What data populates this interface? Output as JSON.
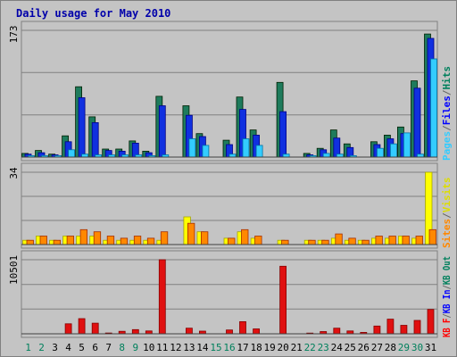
{
  "chart_data": {
    "type": "bar",
    "title": "Daily usage for May 2010",
    "categories": [
      "1",
      "2",
      "3",
      "4",
      "5",
      "6",
      "7",
      "8",
      "9",
      "10",
      "11",
      "12",
      "13",
      "14",
      "15",
      "16",
      "17",
      "18",
      "19",
      "20",
      "21",
      "22",
      "23",
      "24",
      "25",
      "26",
      "27",
      "28",
      "29",
      "30",
      "31"
    ],
    "weekend_days": [
      "1",
      "2",
      "8",
      "9",
      "15",
      "16",
      "22",
      "23",
      "29",
      "30"
    ],
    "panels": [
      {
        "id": "hits",
        "ymax_label": "173",
        "ymax": 173,
        "legend": [
          {
            "name": "Pages",
            "color": "#33ccff"
          },
          {
            "name": "/",
            "color": "#666666"
          },
          {
            "name": "Files",
            "color": "#0000ff"
          },
          {
            "name": "/",
            "color": "#666666"
          },
          {
            "name": "Hits",
            "color": "#00805c"
          }
        ],
        "series": [
          {
            "name": "Hits",
            "color": "#1e7b5c",
            "values": [
              5,
              9,
              4,
              29,
              96,
              55,
              11,
              11,
              22,
              8,
              83,
              0,
              70,
              32,
              0,
              23,
              82,
              37,
              0,
              102,
              0,
              5,
              12,
              37,
              18,
              0,
              21,
              30,
              41,
              104,
              168
            ]
          },
          {
            "name": "Files",
            "color": "#1030e0",
            "values": [
              4,
              6,
              3,
              21,
              81,
              47,
              9,
              8,
              19,
              6,
              70,
              0,
              57,
              28,
              0,
              17,
              65,
              30,
              0,
              62,
              0,
              3,
              10,
              26,
              13,
              0,
              17,
              25,
              32,
              94,
              162
            ]
          },
          {
            "name": "Pages",
            "color": "#33ccff",
            "values": [
              2,
              2,
              2,
              10,
              4,
              3,
              3,
              3,
              3,
              2,
              3,
              0,
              25,
              16,
              0,
              4,
              25,
              16,
              0,
              4,
              0,
              2,
              5,
              4,
              2,
              0,
              12,
              18,
              33,
              4,
              134
            ]
          }
        ]
      },
      {
        "id": "visits",
        "ymax_label": "34",
        "ymax": 34,
        "legend": [
          {
            "name": "Sites",
            "color": "#ff8800"
          },
          {
            "name": "/",
            "color": "#666666"
          },
          {
            "name": "Visits",
            "color": "#dddd00"
          }
        ],
        "series": [
          {
            "name": "Visits",
            "color": "#ffff00",
            "values": [
              2,
              4,
              2,
              4,
              4,
              4,
              2,
              2,
              2,
              2,
              2,
              0,
              13,
              6,
              0,
              3,
              6,
              3,
              0,
              2,
              0,
              2,
              2,
              3,
              2,
              2,
              3,
              3,
              4,
              3,
              34
            ]
          },
          {
            "name": "Sites",
            "color": "#ff8800",
            "values": [
              2,
              4,
              2,
              4,
              7,
              6,
              4,
              3,
              4,
              3,
              6,
              0,
              10,
              6,
              0,
              3,
              7,
              4,
              0,
              2,
              0,
              2,
              2,
              5,
              3,
              2,
              4,
              4,
              4,
              4,
              7
            ]
          }
        ]
      },
      {
        "id": "kbytes",
        "ymax_label": "10501",
        "ymax": 10501,
        "legend": [
          {
            "name": "KB F",
            "color": "#ff0000"
          },
          {
            "name": "/",
            "color": "#666666"
          },
          {
            "name": "KB In",
            "color": "#0000ff"
          },
          {
            "name": "/",
            "color": "#666666"
          },
          {
            "name": "KB Out",
            "color": "#00805c"
          }
        ],
        "series": [
          {
            "name": "KB F",
            "color": "#e01010",
            "values": [
              60,
              60,
              60,
              1420,
              2150,
              1500,
              110,
              360,
              600,
              400,
              10501,
              0,
              800,
              380,
              0,
              550,
              1720,
              690,
              0,
              9580,
              0,
              100,
              310,
              800,
              400,
              200,
              1100,
              2070,
              1200,
              1900,
              3460
            ]
          }
        ]
      }
    ]
  }
}
